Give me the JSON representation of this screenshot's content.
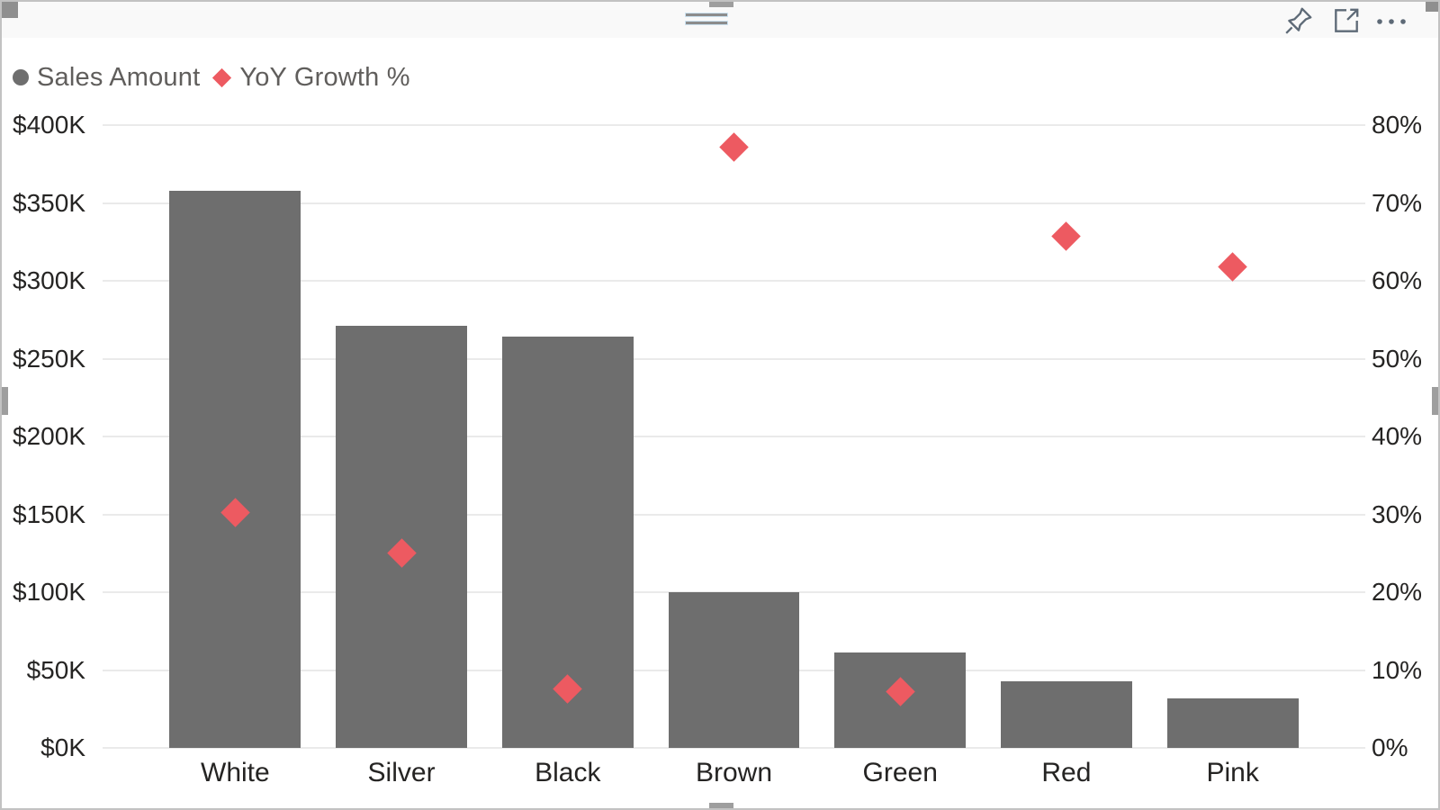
{
  "toolbar": {
    "icons": [
      {
        "name": "pin"
      },
      {
        "name": "focus-mode"
      },
      {
        "name": "more-options"
      }
    ]
  },
  "legend": {
    "items": [
      {
        "label": "Sales Amount",
        "marker": "circle",
        "color": "#6e6e6e"
      },
      {
        "label": "YoY Growth %",
        "marker": "diamond",
        "color": "#ed5a61"
      }
    ]
  },
  "chart_data": {
    "type": "combo",
    "subtypes": [
      "bar",
      "scatter"
    ],
    "categories": [
      "White",
      "Silver",
      "Black",
      "Brown",
      "Green",
      "Red",
      "Pink"
    ],
    "series": [
      {
        "name": "Sales Amount",
        "type": "bar",
        "axis": "left",
        "color": "#6e6e6e",
        "values": [
          358000,
          271000,
          264000,
          100000,
          61000,
          43000,
          32000
        ]
      },
      {
        "name": "YoY Growth %",
        "type": "scatter",
        "marker": "diamond",
        "axis": "right",
        "color": "#ed5a61",
        "values": [
          30.2,
          25.0,
          7.6,
          77.2,
          7.2,
          65.7,
          61.8
        ]
      }
    ],
    "left_axis": {
      "min": 0,
      "max": 400000,
      "tick_step": 50000,
      "tick_labels": [
        "$0K",
        "$50K",
        "$100K",
        "$150K",
        "$200K",
        "$250K",
        "$300K",
        "$350K",
        "$400K"
      ]
    },
    "right_axis": {
      "min": 0,
      "max": 80,
      "tick_step": 10,
      "tick_labels": [
        "0%",
        "10%",
        "20%",
        "30%",
        "40%",
        "50%",
        "60%",
        "70%",
        "80%"
      ]
    },
    "grid": true,
    "legend_position": "top-left",
    "title": ""
  }
}
